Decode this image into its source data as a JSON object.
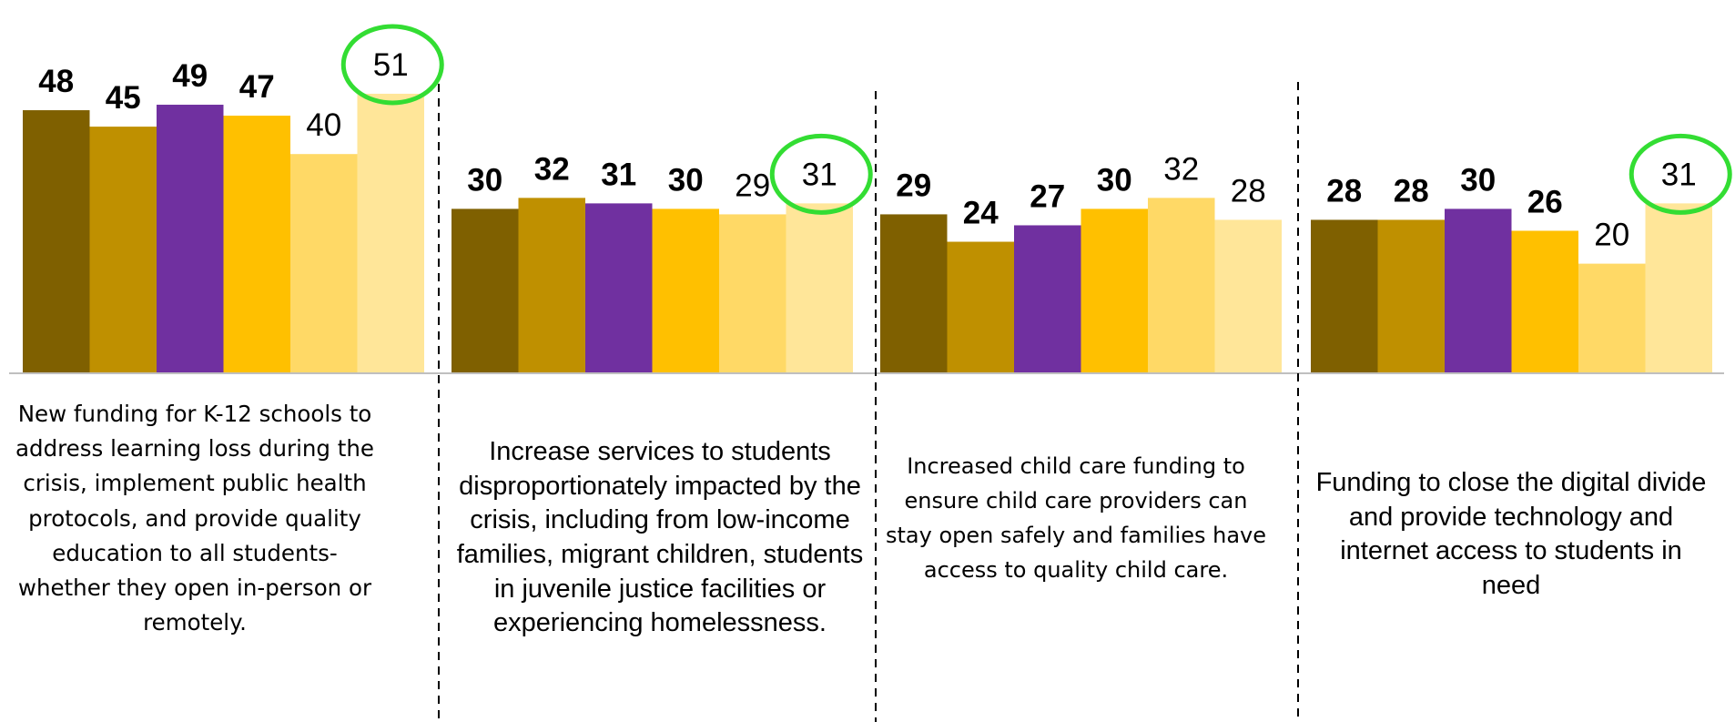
{
  "chart_data": {
    "type": "bar",
    "title": "",
    "xlabel": "",
    "ylabel": "",
    "ylim": [
      0,
      55
    ],
    "grid": false,
    "legend": "none",
    "series_colors": [
      "#7f6000",
      "#bf9000",
      "#7030a0",
      "#ffc000",
      "#ffd966",
      "#ffe699"
    ],
    "highlight_color": "#33dd33",
    "groups": [
      {
        "label": "New funding for K-12 schools to address learning loss during the crisis, implement public health protocols, and provide quality education to all students-whether they open in-person or remotely.",
        "values": [
          48,
          45,
          49,
          47,
          40,
          51
        ],
        "bold": [
          true,
          true,
          true,
          true,
          false,
          false
        ],
        "highlight_index": 5
      },
      {
        "label": "Increase services to students disproportionately impacted by the crisis, including from low-income families, migrant children, students in juvenile justice facilities or experiencing homelessness.",
        "values": [
          30,
          32,
          31,
          30,
          29,
          31
        ],
        "bold": [
          true,
          true,
          true,
          true,
          false,
          false
        ],
        "highlight_index": 5
      },
      {
        "label": "Increased child care funding to ensure child care providers can stay open safely and families have access to quality child care.",
        "values": [
          29,
          24,
          27,
          30,
          32,
          28
        ],
        "bold": [
          true,
          true,
          true,
          true,
          false,
          false
        ],
        "highlight_index": null
      },
      {
        "label": "Funding to close the digital divide and provide technology and internet access to students in need",
        "values": [
          28,
          28,
          30,
          26,
          20,
          31
        ],
        "bold": [
          true,
          true,
          true,
          true,
          false,
          false
        ],
        "highlight_index": 5
      }
    ]
  }
}
